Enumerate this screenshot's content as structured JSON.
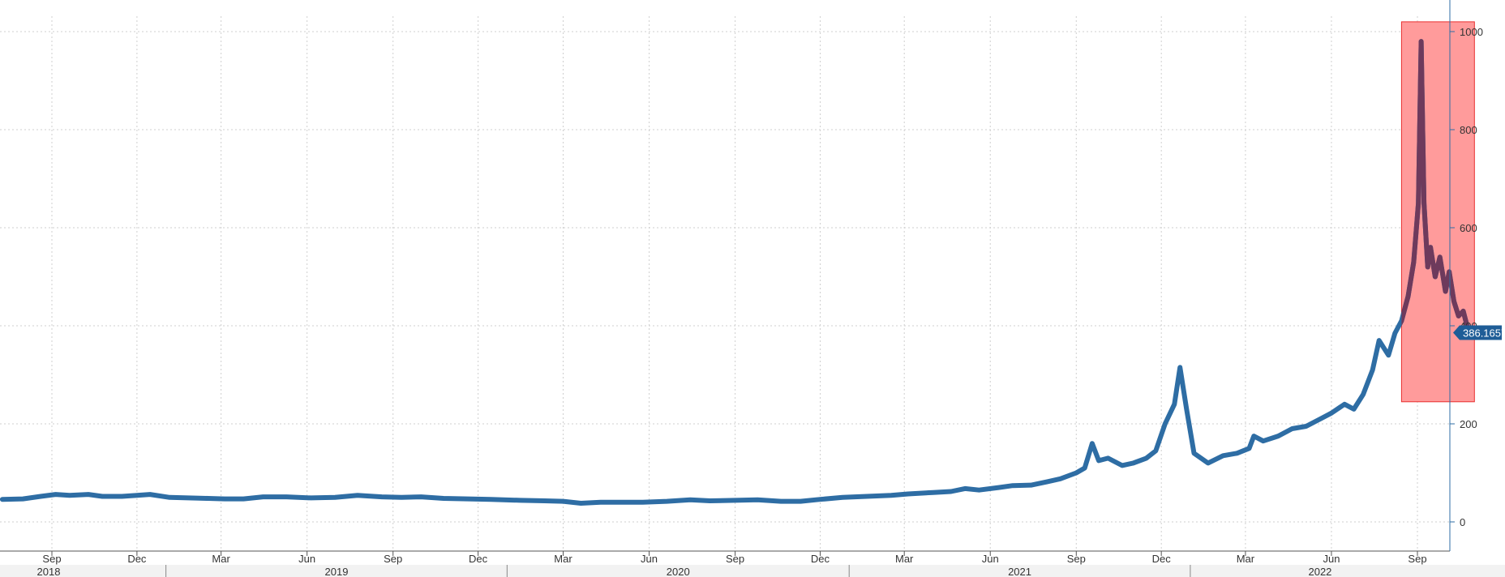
{
  "chart_data": {
    "type": "line",
    "title": "",
    "xlabel": "",
    "ylabel": "",
    "ylim": [
      0,
      1000
    ],
    "yticks": [
      "0",
      "200",
      "400",
      "600",
      "800",
      "1000"
    ],
    "grid": true,
    "x_axis": {
      "month_ticks": [
        "Sep",
        "Dec",
        "Mar",
        "Jun",
        "Sep",
        "Dec",
        "Mar",
        "Jun",
        "Sep",
        "Dec",
        "Mar",
        "Jun",
        "Sep",
        "Dec",
        "Mar",
        "Jun",
        "Sep"
      ],
      "month_tick_dates": [
        "2018-09-01",
        "2018-12-01",
        "2019-03-01",
        "2019-06-01",
        "2019-09-01",
        "2019-12-01",
        "2020-03-01",
        "2020-06-01",
        "2020-09-01",
        "2020-12-01",
        "2021-03-01",
        "2021-06-01",
        "2021-09-01",
        "2021-12-01",
        "2022-03-01",
        "2022-06-01",
        "2022-09-01"
      ],
      "years": [
        "2018",
        "2019",
        "2020",
        "2021",
        "2022"
      ],
      "year_dates": [
        "2018-07-01",
        "2019-01-01",
        "2020-01-01",
        "2021-01-01",
        "2022-01-01"
      ]
    },
    "series": [
      {
        "color": "#2e6da4",
        "last_value": "386.1657",
        "points": [
          [
            "2018-07-10",
            46
          ],
          [
            "2018-08-01",
            47
          ],
          [
            "2018-08-20",
            52
          ],
          [
            "2018-09-05",
            56
          ],
          [
            "2018-09-20",
            54
          ],
          [
            "2018-10-10",
            56
          ],
          [
            "2018-10-25",
            52
          ],
          [
            "2018-11-15",
            52
          ],
          [
            "2018-12-01",
            54
          ],
          [
            "2018-12-15",
            56
          ],
          [
            "2019-01-05",
            50
          ],
          [
            "2019-01-25",
            49
          ],
          [
            "2019-02-15",
            48
          ],
          [
            "2019-03-05",
            47
          ],
          [
            "2019-03-25",
            47
          ],
          [
            "2019-04-15",
            51
          ],
          [
            "2019-05-10",
            51
          ],
          [
            "2019-06-05",
            49
          ],
          [
            "2019-07-01",
            50
          ],
          [
            "2019-07-25",
            54
          ],
          [
            "2019-08-20",
            51
          ],
          [
            "2019-09-10",
            50
          ],
          [
            "2019-10-01",
            51
          ],
          [
            "2019-10-25",
            48
          ],
          [
            "2019-11-20",
            47
          ],
          [
            "2019-12-15",
            46
          ],
          [
            "2020-01-15",
            44
          ],
          [
            "2020-02-10",
            43
          ],
          [
            "2020-03-01",
            42
          ],
          [
            "2020-03-20",
            38
          ],
          [
            "2020-04-10",
            40
          ],
          [
            "2020-05-01",
            40
          ],
          [
            "2020-05-25",
            40
          ],
          [
            "2020-06-20",
            42
          ],
          [
            "2020-07-15",
            45
          ],
          [
            "2020-08-05",
            43
          ],
          [
            "2020-09-01",
            44
          ],
          [
            "2020-09-25",
            45
          ],
          [
            "2020-10-20",
            42
          ],
          [
            "2020-11-10",
            42
          ],
          [
            "2020-12-01",
            46
          ],
          [
            "2020-12-25",
            50
          ],
          [
            "2021-01-20",
            52
          ],
          [
            "2021-02-15",
            54
          ],
          [
            "2021-03-05",
            57
          ],
          [
            "2021-04-01",
            60
          ],
          [
            "2021-04-20",
            62
          ],
          [
            "2021-05-05",
            68
          ],
          [
            "2021-05-20",
            65
          ],
          [
            "2021-06-10",
            70
          ],
          [
            "2021-06-25",
            74
          ],
          [
            "2021-07-15",
            75
          ],
          [
            "2021-08-01",
            82
          ],
          [
            "2021-08-15",
            88
          ],
          [
            "2021-09-01",
            100
          ],
          [
            "2021-09-10",
            110
          ],
          [
            "2021-09-18",
            160
          ],
          [
            "2021-09-25",
            125
          ],
          [
            "2021-10-05",
            130
          ],
          [
            "2021-10-20",
            115
          ],
          [
            "2021-11-01",
            120
          ],
          [
            "2021-11-15",
            130
          ],
          [
            "2021-11-25",
            145
          ],
          [
            "2021-12-05",
            200
          ],
          [
            "2021-12-15",
            240
          ],
          [
            "2021-12-21",
            315
          ],
          [
            "2021-12-28",
            230
          ],
          [
            "2022-01-05",
            140
          ],
          [
            "2022-01-20",
            120
          ],
          [
            "2022-02-05",
            135
          ],
          [
            "2022-02-20",
            140
          ],
          [
            "2022-03-05",
            150
          ],
          [
            "2022-03-10",
            175
          ],
          [
            "2022-03-20",
            165
          ],
          [
            "2022-04-05",
            175
          ],
          [
            "2022-04-20",
            190
          ],
          [
            "2022-05-05",
            195
          ],
          [
            "2022-05-20",
            210
          ],
          [
            "2022-06-01",
            222
          ],
          [
            "2022-06-15",
            240
          ],
          [
            "2022-06-25",
            230
          ],
          [
            "2022-07-05",
            260
          ],
          [
            "2022-07-15",
            310
          ],
          [
            "2022-07-22",
            370
          ],
          [
            "2022-08-01",
            340
          ],
          [
            "2022-08-08",
            385
          ],
          [
            "2022-08-15",
            410
          ],
          [
            "2022-08-22",
            460
          ],
          [
            "2022-08-28",
            530
          ],
          [
            "2022-09-02",
            650
          ],
          [
            "2022-09-05",
            980
          ],
          [
            "2022-09-08",
            650
          ],
          [
            "2022-09-12",
            520
          ],
          [
            "2022-09-15",
            560
          ],
          [
            "2022-09-20",
            500
          ],
          [
            "2022-09-25",
            540
          ],
          [
            "2022-10-01",
            470
          ],
          [
            "2022-10-05",
            510
          ],
          [
            "2022-10-10",
            450
          ],
          [
            "2022-10-15",
            420
          ],
          [
            "2022-10-20",
            430
          ],
          [
            "2022-10-26",
            386
          ]
        ]
      }
    ],
    "highlight": {
      "color": "#ff9b9b",
      "x_range": [
        "2022-08-15",
        "2022-11-01"
      ],
      "y_range": [
        245,
        1020
      ]
    }
  }
}
